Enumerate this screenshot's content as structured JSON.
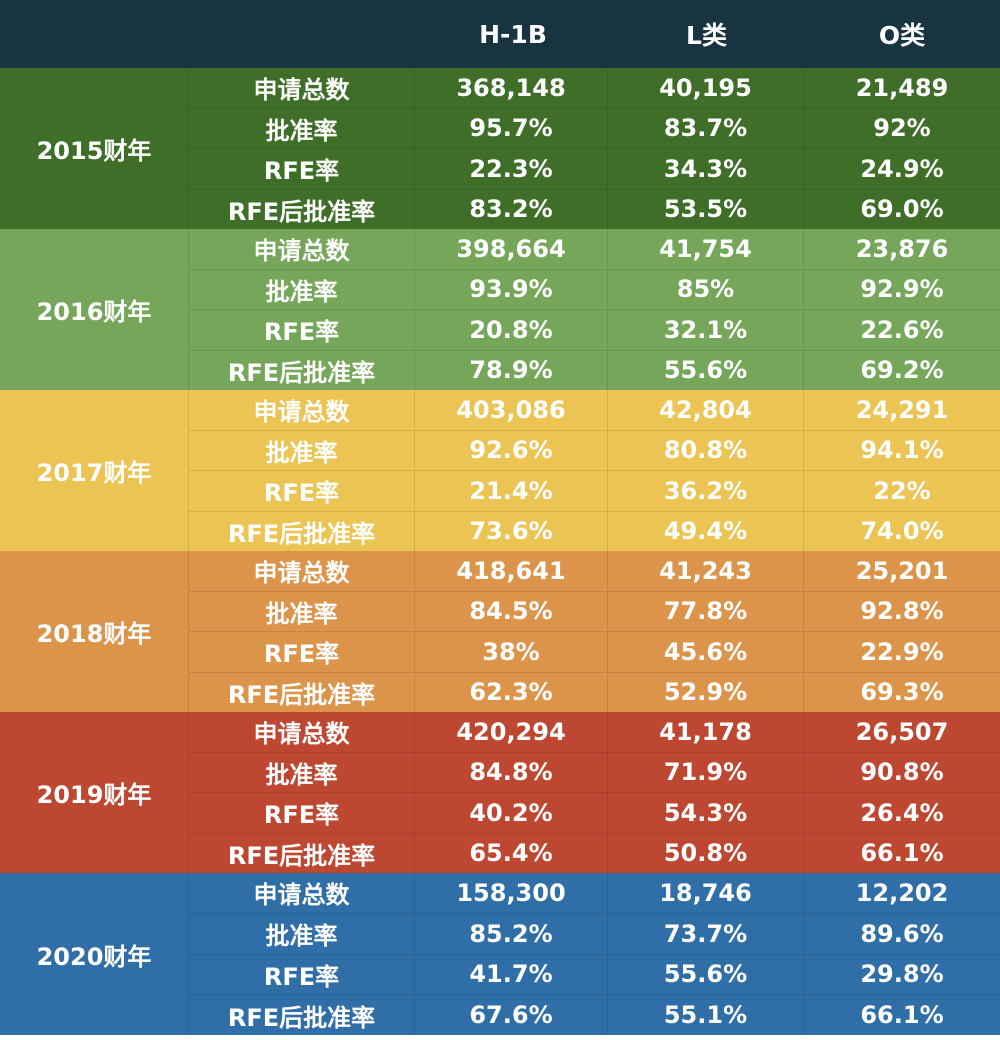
{
  "colors": {
    "header": "#183440",
    "fy2015": "#3f6e28",
    "fy2016": "#76a65a",
    "fy2017": "#ebc453",
    "fy2018": "#dc944a",
    "fy2019": "#be4731",
    "fy2020": "#2f6ea6"
  },
  "chart_data": {
    "type": "table",
    "columns": [
      "",
      "",
      "H-1B",
      "L类",
      "O类"
    ],
    "groups": [
      {
        "label": "2015财年",
        "rows": [
          {
            "metric": "申请总数",
            "values": [
              "368,148",
              "40,195",
              "21,489"
            ]
          },
          {
            "metric": "批准率",
            "values": [
              "95.7%",
              "83.7%",
              "92%"
            ]
          },
          {
            "metric": "RFE率",
            "values": [
              "22.3%",
              "34.3%",
              "24.9%"
            ]
          },
          {
            "metric": "RFE后批准率",
            "values": [
              "83.2%",
              "53.5%",
              "69.0%"
            ]
          }
        ]
      },
      {
        "label": "2016财年",
        "rows": [
          {
            "metric": "申请总数",
            "values": [
              "398,664",
              "41,754",
              "23,876"
            ]
          },
          {
            "metric": "批准率",
            "values": [
              "93.9%",
              "85%",
              "92.9%"
            ]
          },
          {
            "metric": "RFE率",
            "values": [
              "20.8%",
              "32.1%",
              "22.6%"
            ]
          },
          {
            "metric": "RFE后批准率",
            "values": [
              "78.9%",
              "55.6%",
              "69.2%"
            ]
          }
        ]
      },
      {
        "label": "2017财年",
        "rows": [
          {
            "metric": "申请总数",
            "values": [
              "403,086",
              "42,804",
              "24,291"
            ]
          },
          {
            "metric": "批准率",
            "values": [
              "92.6%",
              "80.8%",
              "94.1%"
            ]
          },
          {
            "metric": "RFE率",
            "values": [
              "21.4%",
              "36.2%",
              "22%"
            ]
          },
          {
            "metric": "RFE后批准率",
            "values": [
              "73.6%",
              "49.4%",
              "74.0%"
            ]
          }
        ]
      },
      {
        "label": "2018财年",
        "rows": [
          {
            "metric": "申请总数",
            "values": [
              "418,641",
              "41,243",
              "25,201"
            ]
          },
          {
            "metric": "批准率",
            "values": [
              "84.5%",
              "77.8%",
              "92.8%"
            ]
          },
          {
            "metric": "RFE率",
            "values": [
              "38%",
              "45.6%",
              "22.9%"
            ]
          },
          {
            "metric": "RFE后批准率",
            "values": [
              "62.3%",
              "52.9%",
              "69.3%"
            ]
          }
        ]
      },
      {
        "label": "2019财年",
        "rows": [
          {
            "metric": "申请总数",
            "values": [
              "420,294",
              "41,178",
              "26,507"
            ]
          },
          {
            "metric": "批准率",
            "values": [
              "84.8%",
              "71.9%",
              "90.8%"
            ]
          },
          {
            "metric": "RFE率",
            "values": [
              "40.2%",
              "54.3%",
              "26.4%"
            ]
          },
          {
            "metric": "RFE后批准率",
            "values": [
              "65.4%",
              "50.8%",
              "66.1%"
            ]
          }
        ]
      },
      {
        "label": "2020财年",
        "rows": [
          {
            "metric": "申请总数",
            "values": [
              "158,300",
              "18,746",
              "12,202"
            ]
          },
          {
            "metric": "批准率",
            "values": [
              "85.2%",
              "73.7%",
              "89.6%"
            ]
          },
          {
            "metric": "RFE率",
            "values": [
              "41.7%",
              "55.6%",
              "29.8%"
            ]
          },
          {
            "metric": "RFE后批准率",
            "values": [
              "67.6%",
              "55.1%",
              "66.1%"
            ]
          }
        ]
      }
    ]
  }
}
